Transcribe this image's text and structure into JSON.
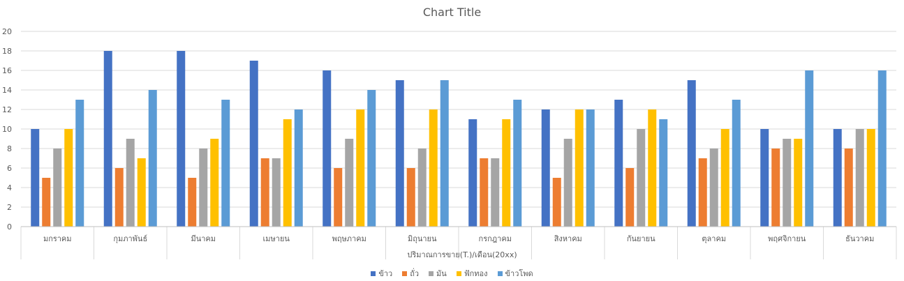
{
  "chart_data": {
    "type": "bar",
    "title": "Chart Title",
    "xlabel": "ปริมาณการขาย(T.)/เดือน(20xx)",
    "ylabel": "",
    "ylim": [
      0,
      20
    ],
    "yticks": [
      0,
      2,
      4,
      6,
      8,
      10,
      12,
      14,
      16,
      18,
      20
    ],
    "grid": true,
    "legend_position": "bottom",
    "categories": [
      "มกราคม",
      "กุมภาพันธ์",
      "มีนาคม",
      "เมษายน",
      "พฤษภาคม",
      "มิถุนายน",
      "กรกฎาคม",
      "สิงหาคม",
      "กันยายน",
      "ตุลาคม",
      "พฤศจิกายน",
      "ธันวาคม"
    ],
    "series": [
      {
        "name": "ข้าว",
        "color": "#4472C4",
        "values": [
          10,
          18,
          18,
          17,
          16,
          15,
          11,
          12,
          13,
          15,
          10,
          10
        ]
      },
      {
        "name": "ถั่ว",
        "color": "#ED7D31",
        "values": [
          5,
          6,
          5,
          7,
          6,
          6,
          7,
          5,
          6,
          7,
          8,
          8
        ]
      },
      {
        "name": "มัน",
        "color": "#A5A5A5",
        "values": [
          8,
          9,
          8,
          7,
          9,
          8,
          7,
          9,
          10,
          8,
          9,
          10
        ]
      },
      {
        "name": "ฟักทอง",
        "color": "#FFC000",
        "values": [
          10,
          7,
          9,
          11,
          12,
          12,
          11,
          12,
          12,
          10,
          9,
          10
        ]
      },
      {
        "name": "ข้าวโพด",
        "color": "#5B9BD5",
        "values": [
          13,
          14,
          13,
          12,
          14,
          15,
          13,
          12,
          11,
          13,
          16,
          16
        ]
      }
    ]
  }
}
